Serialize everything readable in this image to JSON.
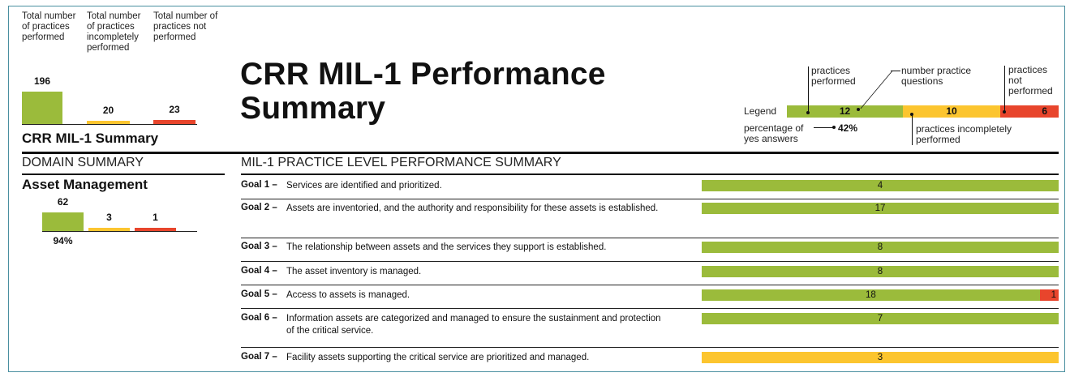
{
  "header_labels": {
    "performed": "Total number of practices performed",
    "incomplete": "Total number of practices incompletely performed",
    "not_performed": "Total number of practices not performed"
  },
  "page_title": "CRR MIL-1 Performance Summary",
  "summary_label": "CRR MIL-1 Summary",
  "domain_summary_heading": "DOMAIN SUMMARY",
  "practice_heading": "MIL-1 PRACTICE LEVEL PERFORMANCE SUMMARY",
  "domain_name": "Asset Management",
  "legend": {
    "label": "Legend",
    "practices_performed": "practices performed",
    "number_practice_questions": "number practice questions",
    "practices_not_performed": "practices not performed",
    "percentage_yes": "percentage of yes answers",
    "practices_incompletely": "practices incompletely performed",
    "values": [
      "12",
      "10",
      "6"
    ],
    "percent": "42%"
  },
  "colors": {
    "green": "#9bbb3b",
    "yellow": "#fcc52f",
    "red": "#e8452c"
  },
  "chart_data": [
    {
      "type": "bar",
      "title": "CRR MIL-1 Summary",
      "categories": [
        "performed",
        "incompletely performed",
        "not performed"
      ],
      "values": [
        196,
        20,
        23
      ],
      "ylim": [
        0,
        196
      ]
    },
    {
      "type": "bar",
      "title": "Asset Management",
      "categories": [
        "performed",
        "incompletely performed",
        "not performed"
      ],
      "values": [
        62,
        3,
        1
      ],
      "percent_yes": "94%",
      "ylim": [
        0,
        62
      ]
    },
    {
      "type": "bar",
      "title": "MIL-1 PRACTICE LEVEL PERFORMANCE SUMMARY",
      "stacked": true,
      "categories": [
        "Goal 1",
        "Goal 2",
        "Goal 3",
        "Goal 4",
        "Goal 5",
        "Goal 6",
        "Goal 7"
      ],
      "series": [
        {
          "status": "performed",
          "color": "#9bbb3b",
          "values": [
            4,
            17,
            8,
            8,
            18,
            7,
            0
          ]
        },
        {
          "status": "incompletely performed",
          "color": "#fcc52f",
          "values": [
            0,
            0,
            0,
            0,
            0,
            0,
            3
          ]
        },
        {
          "status": "not performed",
          "color": "#e8452c",
          "values": [
            0,
            0,
            0,
            0,
            1,
            0,
            0
          ]
        }
      ]
    }
  ],
  "goals": [
    {
      "label": "Goal 1 –",
      "text": "Services are identified and prioritized."
    },
    {
      "label": "Goal 2 –",
      "text": "Assets are inventoried, and the authority and responsibility for these assets is established."
    },
    {
      "label": "Goal 3 –",
      "text": "The relationship between assets and the services they support is established."
    },
    {
      "label": "Goal 4 –",
      "text": "The asset inventory is managed."
    },
    {
      "label": "Goal 5 –",
      "text": "Access to assets is managed."
    },
    {
      "label": "Goal 6 –",
      "text": "Information assets are categorized and managed to ensure the sustainment and protection of the critical service."
    },
    {
      "label": "Goal 7 –",
      "text": "Facility assets supporting the critical service are prioritized and managed."
    }
  ]
}
